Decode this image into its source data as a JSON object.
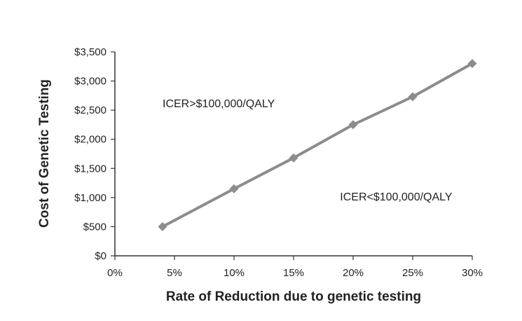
{
  "chart_data": {
    "type": "line",
    "title": "",
    "xlabel": "Rate of Reduction due to genetic testing",
    "ylabel": "Cost of Genetic Testing",
    "xlim": [
      0,
      30
    ],
    "ylim": [
      0,
      3500
    ],
    "x_ticks": [
      {
        "value": 0,
        "label": "0%"
      },
      {
        "value": 5,
        "label": "5%"
      },
      {
        "value": 10,
        "label": "10%"
      },
      {
        "value": 15,
        "label": "15%"
      },
      {
        "value": 20,
        "label": "20%"
      },
      {
        "value": 25,
        "label": "25%"
      },
      {
        "value": 30,
        "label": "30%"
      }
    ],
    "y_ticks": [
      {
        "value": 0,
        "label": "$0"
      },
      {
        "value": 500,
        "label": "$500"
      },
      {
        "value": 1000,
        "label": "$1,000"
      },
      {
        "value": 1500,
        "label": "$1,500"
      },
      {
        "value": 2000,
        "label": "$2,000"
      },
      {
        "value": 2500,
        "label": "$2,500"
      },
      {
        "value": 3000,
        "label": "$3,000"
      },
      {
        "value": 3500,
        "label": "$3,500"
      }
    ],
    "series": [
      {
        "x": [
          4,
          10,
          15,
          20,
          25,
          30
        ],
        "y": [
          500,
          1150,
          1680,
          2250,
          2730,
          3300
        ],
        "color": "#8c8c8c",
        "marker": "diamond"
      }
    ],
    "annotations": [
      {
        "text": "ICER>$100,000/QALY",
        "x": 4,
        "y": 2550,
        "anchor": "start"
      },
      {
        "text": "ICER<$100,000/QALY",
        "x": 18.9,
        "y": 950,
        "anchor": "start"
      }
    ],
    "grid": false,
    "legend": "none"
  }
}
